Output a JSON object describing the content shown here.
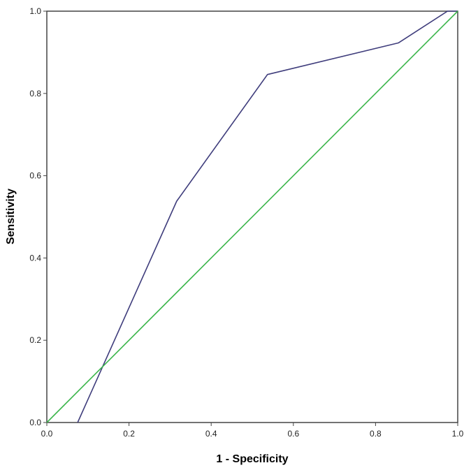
{
  "chart_data": {
    "type": "line",
    "xlabel": "1 - Specificity",
    "ylabel": "Sensitivity",
    "xlim": [
      0,
      1
    ],
    "ylim": [
      0,
      1
    ],
    "x_ticks": [
      "0.0",
      "0.2",
      "0.4",
      "0.6",
      "0.8",
      "1.0"
    ],
    "y_ticks": [
      "0.0",
      "0.2",
      "0.4",
      "0.6",
      "0.8",
      "1.0"
    ],
    "grid": false,
    "legend": "none",
    "series": [
      {
        "color": "#3f3d7c",
        "x": [
          0.075,
          0.316,
          0.537,
          0.856,
          0.975,
          1.0
        ],
        "y": [
          0.0,
          0.538,
          0.846,
          0.923,
          1.0,
          1.0
        ]
      },
      {
        "color": "#3ab54a",
        "x": [
          0.0,
          1.0
        ],
        "y": [
          0.0,
          1.0
        ]
      }
    ]
  }
}
